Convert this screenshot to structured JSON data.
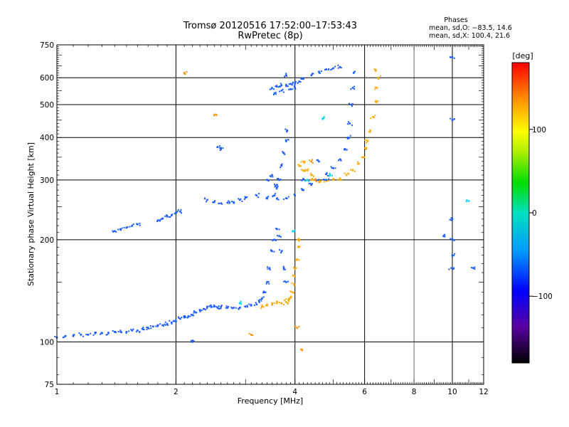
{
  "chart_data": {
    "type": "scatter",
    "title": "Tromsø 20120516 17:52:00–17:53:43",
    "subtitle": "RwPretec (8p)",
    "xlabel": "Frequency [MHz]",
    "ylabel": "Stationary phase Virtual Height [km]",
    "x_scale": "log",
    "y_scale": "log",
    "xlim": [
      1,
      12
    ],
    "ylim": [
      75,
      750
    ],
    "x_ticks": [
      1,
      2,
      4,
      6,
      8,
      10,
      12
    ],
    "x_tick_labels": [
      "1",
      "2",
      "4",
      "6",
      "8",
      "10",
      "12"
    ],
    "y_ticks": [
      75,
      100,
      200,
      300,
      400,
      500,
      600,
      750
    ],
    "y_tick_labels": [
      "75",
      "100",
      "200",
      "300",
      "400",
      "500",
      "600",
      "750"
    ],
    "grid": true,
    "phase_box": {
      "title": "Phases",
      "line_o": "mean, sd,O: −83.5, 14.6",
      "line_x": "mean, sd,X: 100.4, 21.6"
    },
    "colorbar": {
      "label": "[deg]",
      "range": [
        -180,
        180
      ],
      "ticks": [
        100,
        0,
        -100
      ],
      "tick_labels": [
        "100",
        "0",
        "−100"
      ]
    },
    "series": [
      {
        "name": "O-trace low (E / F1)",
        "color": "#1a5cff",
        "phase": -90,
        "points": [
          [
            1.0,
            103
          ],
          [
            1.05,
            104
          ],
          [
            1.1,
            104
          ],
          [
            1.15,
            105
          ],
          [
            1.2,
            105
          ],
          [
            1.25,
            106
          ],
          [
            1.3,
            106
          ],
          [
            1.35,
            106
          ],
          [
            1.4,
            107
          ],
          [
            1.45,
            107
          ],
          [
            1.5,
            107
          ],
          [
            1.55,
            108
          ],
          [
            1.6,
            108
          ],
          [
            1.65,
            109
          ],
          [
            1.7,
            110
          ],
          [
            1.75,
            111
          ],
          [
            1.8,
            112
          ],
          [
            1.85,
            112
          ],
          [
            1.9,
            113
          ],
          [
            1.95,
            114
          ],
          [
            2.0,
            115
          ],
          [
            2.05,
            117
          ],
          [
            2.1,
            118
          ],
          [
            2.15,
            119
          ],
          [
            2.2,
            120
          ],
          [
            2.25,
            122
          ],
          [
            2.3,
            124
          ],
          [
            2.35,
            125
          ],
          [
            2.4,
            127
          ],
          [
            2.45,
            128
          ],
          [
            2.5,
            127
          ],
          [
            2.55,
            126
          ],
          [
            2.6,
            127
          ],
          [
            2.7,
            126
          ],
          [
            2.8,
            126
          ],
          [
            2.9,
            126
          ],
          [
            3.0,
            127
          ],
          [
            3.1,
            128
          ],
          [
            3.2,
            129
          ],
          [
            3.25,
            131
          ],
          [
            3.3,
            134
          ],
          [
            3.35,
            140
          ],
          [
            3.4,
            150
          ],
          [
            3.45,
            165
          ],
          [
            3.5,
            185
          ],
          [
            3.55,
            200
          ],
          [
            3.6,
            215
          ],
          [
            3.65,
            205
          ],
          [
            3.7,
            185
          ],
          [
            3.75,
            165
          ],
          [
            3.8,
            150
          ]
        ]
      },
      {
        "name": "X-trace low",
        "color": "#ffaa00",
        "phase": 100,
        "points": [
          [
            3.3,
            127
          ],
          [
            3.4,
            128
          ],
          [
            3.5,
            129
          ],
          [
            3.6,
            130
          ],
          [
            3.7,
            130
          ],
          [
            3.8,
            131
          ],
          [
            3.85,
            133
          ],
          [
            3.9,
            135
          ],
          [
            3.95,
            140
          ],
          [
            3.98,
            148
          ],
          [
            4.0,
            156
          ],
          [
            4.02,
            165
          ],
          [
            4.05,
            175
          ],
          [
            4.08,
            190
          ],
          [
            4.1,
            200
          ]
        ]
      },
      {
        "name": "Low-frequency oblique branch",
        "color": "#1a5cff",
        "phase": -90,
        "points": [
          [
            1.4,
            212
          ],
          [
            1.45,
            214
          ],
          [
            1.5,
            217
          ],
          [
            1.55,
            220
          ],
          [
            1.6,
            222
          ],
          [
            1.8,
            228
          ],
          [
            1.85,
            231
          ],
          [
            1.9,
            234
          ],
          [
            1.95,
            236
          ],
          [
            2.0,
            240
          ],
          [
            2.05,
            242
          ],
          [
            2.4,
            262
          ],
          [
            2.5,
            258
          ],
          [
            2.6,
            256
          ],
          [
            2.7,
            257
          ],
          [
            2.8,
            258
          ],
          [
            2.9,
            262
          ],
          [
            3.0,
            266
          ]
        ]
      },
      {
        "name": "F2 O-trace",
        "color": "#1a5cff",
        "phase": -95,
        "points": [
          [
            3.2,
            270
          ],
          [
            3.4,
            266
          ],
          [
            3.6,
            264
          ],
          [
            3.8,
            265
          ],
          [
            4.0,
            270
          ],
          [
            4.2,
            280
          ],
          [
            4.4,
            290
          ],
          [
            4.6,
            300
          ],
          [
            4.8,
            312
          ],
          [
            5.0,
            325
          ],
          [
            5.2,
            345
          ],
          [
            5.35,
            370
          ],
          [
            5.45,
            400
          ],
          [
            5.5,
            440
          ],
          [
            5.55,
            500
          ],
          [
            5.6,
            560
          ],
          [
            5.63,
            620
          ],
          [
            3.55,
            270
          ],
          [
            3.6,
            285
          ],
          [
            3.65,
            300
          ],
          [
            3.7,
            330
          ],
          [
            3.75,
            360
          ],
          [
            3.8,
            390
          ],
          [
            3.82,
            420
          ],
          [
            3.4,
            300
          ],
          [
            3.5,
            310
          ],
          [
            3.6,
            290
          ]
        ]
      },
      {
        "name": "F2 X-trace",
        "color": "#ffaa00",
        "phase": 100,
        "points": [
          [
            4.1,
            330
          ],
          [
            4.2,
            320
          ],
          [
            4.4,
            300
          ],
          [
            4.6,
            296
          ],
          [
            4.8,
            298
          ],
          [
            5.0,
            300
          ],
          [
            5.2,
            303
          ],
          [
            5.4,
            310
          ],
          [
            5.6,
            320
          ],
          [
            5.8,
            335
          ],
          [
            5.95,
            350
          ],
          [
            6.05,
            370
          ],
          [
            6.1,
            390
          ],
          [
            6.2,
            420
          ],
          [
            6.3,
            460
          ],
          [
            6.4,
            510
          ],
          [
            6.45,
            560
          ],
          [
            6.5,
            600
          ],
          [
            6.4,
            630
          ],
          [
            4.2,
            340
          ],
          [
            4.3,
            320
          ],
          [
            4.4,
            310
          ]
        ]
      },
      {
        "name": "Second-hop O-trace",
        "color": "#1a5cff",
        "phase": -90,
        "points": [
          [
            3.5,
            560
          ],
          [
            3.6,
            565
          ],
          [
            3.7,
            570
          ],
          [
            3.8,
            572
          ],
          [
            3.9,
            575
          ],
          [
            4.0,
            578
          ],
          [
            4.1,
            585
          ],
          [
            4.2,
            595
          ],
          [
            4.4,
            610
          ],
          [
            4.6,
            625
          ],
          [
            4.8,
            635
          ],
          [
            5.0,
            640
          ],
          [
            5.2,
            645
          ],
          [
            3.55,
            540
          ],
          [
            3.7,
            550
          ],
          [
            3.9,
            555
          ],
          [
            4.0,
            560
          ]
        ]
      },
      {
        "name": "Scattered echoes",
        "color": "#1a5cff",
        "phase": -110,
        "points": [
          [
            10.0,
            690
          ],
          [
            10.0,
            450
          ],
          [
            10.0,
            230
          ],
          [
            10.0,
            180
          ],
          [
            9.95,
            165
          ],
          [
            10.0,
            200
          ],
          [
            9.5,
            205
          ],
          [
            11.3,
            165
          ],
          [
            2.55,
            375
          ],
          [
            2.6,
            370
          ],
          [
            3.8,
            610
          ],
          [
            2.2,
            100
          ],
          [
            4.8,
            300
          ],
          [
            4.6,
            340
          ],
          [
            4.2,
            302
          ]
        ]
      },
      {
        "name": "Scattered X echoes",
        "color": "#ff9000",
        "phase": 110,
        "points": [
          [
            2.1,
            620
          ],
          [
            2.5,
            465
          ],
          [
            4.15,
            95
          ],
          [
            4.05,
            110
          ],
          [
            3.1,
            105
          ],
          [
            4.4,
            340
          ],
          [
            4.5,
            300
          ]
        ]
      },
      {
        "name": "Scattered cyan echoes",
        "color": "#00d8ff",
        "phase": 30,
        "points": [
          [
            4.9,
            310
          ],
          [
            4.7,
            455
          ],
          [
            3.95,
            212
          ],
          [
            4.3,
            300
          ],
          [
            2.9,
            130
          ],
          [
            11.0,
            260
          ]
        ]
      }
    ]
  }
}
